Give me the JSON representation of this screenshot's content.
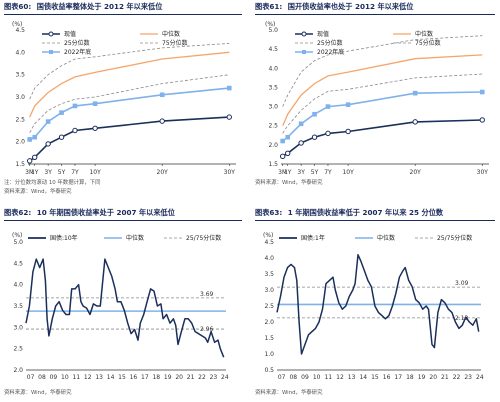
{
  "colors": {
    "navy": "#1b2f5b",
    "orange": "#f5a56b",
    "light_blue": "#7fb2ea",
    "dash_grey": "#8a8a8a",
    "title_navy": "#1a2a5a"
  },
  "panels": [
    {
      "id": "c60",
      "fig_num": "图表60:",
      "title": "国债收益率整体处于 2012 年以来低位",
      "footnotes": [
        "注：分位数均滚动 10 年数据计算，下同",
        "资料来源：Wind，华泰研究"
      ]
    },
    {
      "id": "c61",
      "fig_num": "图表61:",
      "title": "国开债收益率也处于 2012 年以来低位",
      "footnotes": [
        "资料来源：Wind，华泰研究"
      ]
    },
    {
      "id": "c62",
      "fig_num": "图表62:",
      "title": "10 年期国债收益率处于 2007 年以来低位",
      "footnotes": [
        "资料来源：Wind，华泰研究"
      ]
    },
    {
      "id": "c63",
      "fig_num": "图表63:",
      "title": "1 年期国债收益率低于 2007 年以来 25 分位数",
      "footnotes": [
        "资料来源：Wind，华泰研究"
      ]
    }
  ],
  "chart_data": [
    {
      "type": "line",
      "unit_label": "(%)",
      "x": [
        "3M",
        "1Y",
        "3Y",
        "5Y",
        "7Y",
        "10Y",
        "20Y",
        "30Y"
      ],
      "x_pos": [
        0.25,
        1,
        3,
        5,
        7,
        10,
        20,
        30
      ],
      "xticks": [
        "3M",
        "1Y",
        "3Y",
        "5Y",
        "7Y",
        "10Y",
        "20Y",
        "30Y"
      ],
      "ylim": [
        1.5,
        4.5
      ],
      "yticks": [
        "1.5",
        "2.0",
        "2.5",
        "3.0",
        "3.5",
        "4.0",
        "4.5"
      ],
      "legend": [
        "现值",
        "中位数",
        "25分位数",
        "75分位数",
        "2022年底"
      ],
      "series": [
        {
          "name": "现值",
          "style": "navy_open_circle",
          "values": [
            1.57,
            1.65,
            1.95,
            2.1,
            2.25,
            2.3,
            2.46,
            2.55
          ]
        },
        {
          "name": "中位数",
          "style": "orange_solid",
          "values": [
            2.55,
            2.8,
            3.1,
            3.3,
            3.45,
            3.55,
            3.85,
            4.0
          ]
        },
        {
          "name": "25分位数",
          "style": "grey_dash",
          "values": [
            2.2,
            2.4,
            2.7,
            2.85,
            2.95,
            3.0,
            3.3,
            3.5
          ]
        },
        {
          "name": "75分位数",
          "style": "grey_dash",
          "values": [
            2.95,
            3.2,
            3.5,
            3.7,
            3.85,
            3.9,
            4.1,
            4.2
          ]
        },
        {
          "name": "2022年底",
          "style": "blue_square",
          "values": [
            2.05,
            2.1,
            2.45,
            2.65,
            2.8,
            2.85,
            3.05,
            3.2
          ]
        }
      ]
    },
    {
      "type": "line",
      "unit_label": "(%)",
      "x": [
        "3M",
        "1Y",
        "3Y",
        "5Y",
        "7Y",
        "10Y",
        "20Y",
        "30Y"
      ],
      "x_pos": [
        0.25,
        1,
        3,
        5,
        7,
        10,
        20,
        30
      ],
      "xticks": [
        "3M",
        "1Y",
        "3Y",
        "5Y",
        "7Y",
        "10Y",
        "20Y",
        "30Y"
      ],
      "ylim": [
        1.5,
        5.0
      ],
      "yticks": [
        "1.5",
        "2.0",
        "2.5",
        "3.0",
        "3.5",
        "4.0",
        "4.5",
        "5.0"
      ],
      "legend": [
        "现值",
        "中位数",
        "25分位数",
        "75分位数",
        "2022年底"
      ],
      "series": [
        {
          "name": "现值",
          "style": "navy_open_circle",
          "values": [
            1.7,
            1.78,
            2.05,
            2.2,
            2.3,
            2.35,
            2.6,
            2.65
          ]
        },
        {
          "name": "中位数",
          "style": "orange_solid",
          "values": [
            2.5,
            2.8,
            3.3,
            3.6,
            3.8,
            3.9,
            4.25,
            4.35
          ]
        },
        {
          "name": "25分位数",
          "style": "grey_dash",
          "values": [
            2.3,
            2.5,
            2.9,
            3.2,
            3.4,
            3.45,
            3.75,
            3.85
          ]
        },
        {
          "name": "75分位数",
          "style": "grey_dash",
          "values": [
            3.0,
            3.3,
            3.9,
            4.2,
            4.35,
            4.45,
            4.75,
            4.85
          ]
        },
        {
          "name": "2022年底",
          "style": "blue_square",
          "values": [
            2.1,
            2.2,
            2.55,
            2.8,
            3.0,
            3.05,
            3.35,
            3.38
          ]
        }
      ]
    },
    {
      "type": "line",
      "unit_label": "(%)",
      "x": [
        "07",
        "08",
        "09",
        "10",
        "11",
        "12",
        "13",
        "14",
        "15",
        "16",
        "17",
        "18",
        "19",
        "20",
        "21",
        "22",
        "23",
        "24"
      ],
      "xticks": [
        "07",
        "08",
        "09",
        "10",
        "11",
        "12",
        "13",
        "14",
        "15",
        "16",
        "17",
        "18",
        "19",
        "20",
        "21",
        "22",
        "23",
        "24"
      ],
      "ylim": [
        2.0,
        5.0
      ],
      "yticks": [
        "2.0",
        "2.5",
        "3.0",
        "3.5",
        "4.0",
        "4.5",
        "5.0"
      ],
      "legend": [
        "国债:10年",
        "中位数",
        "25/75分位数"
      ],
      "series": [
        {
          "name": "国债:10年",
          "style": "navy_thick",
          "x": [
            2007.0,
            2007.3,
            2007.6,
            2007.9,
            2008.2,
            2008.5,
            2008.7,
            2008.85,
            2009.0,
            2009.3,
            2009.6,
            2009.9,
            2010.2,
            2010.5,
            2010.8,
            2011.0,
            2011.3,
            2011.6,
            2011.8,
            2012.0,
            2012.3,
            2012.6,
            2012.9,
            2013.2,
            2013.5,
            2013.7,
            2013.9,
            2014.2,
            2014.5,
            2014.8,
            2015.0,
            2015.3,
            2015.6,
            2015.9,
            2016.2,
            2016.5,
            2016.8,
            2017.0,
            2017.3,
            2017.6,
            2017.9,
            2018.2,
            2018.5,
            2018.8,
            2019.0,
            2019.3,
            2019.6,
            2019.9,
            2020.1,
            2020.3,
            2020.6,
            2020.9,
            2021.2,
            2021.5,
            2021.8,
            2022.1,
            2022.4,
            2022.7,
            2022.9,
            2023.2,
            2023.5,
            2023.8,
            2024.0,
            2024.3
          ],
          "values": [
            3.1,
            3.5,
            4.3,
            4.6,
            4.4,
            4.6,
            4.1,
            3.2,
            2.8,
            3.2,
            3.5,
            3.6,
            3.4,
            3.3,
            3.3,
            3.9,
            3.9,
            4.0,
            3.6,
            3.5,
            3.45,
            3.3,
            3.55,
            3.5,
            3.5,
            4.05,
            4.6,
            4.4,
            4.2,
            3.9,
            3.6,
            3.6,
            3.4,
            3.1,
            2.85,
            2.95,
            2.7,
            3.1,
            3.3,
            3.6,
            3.9,
            3.85,
            3.5,
            3.55,
            3.2,
            3.3,
            3.1,
            3.2,
            3.05,
            2.6,
            2.9,
            3.2,
            3.2,
            3.1,
            2.9,
            2.85,
            2.8,
            2.75,
            2.65,
            2.9,
            2.65,
            2.7,
            2.5,
            2.3
          ]
        }
      ],
      "median": 3.38,
      "p25": 2.96,
      "p75": 3.69,
      "annotations": [
        "3.69",
        "2.96"
      ]
    },
    {
      "type": "line",
      "unit_label": "(%)",
      "x": [
        "07",
        "08",
        "09",
        "10",
        "11",
        "12",
        "13",
        "14",
        "15",
        "16",
        "17",
        "18",
        "19",
        "20",
        "21",
        "22",
        "23",
        "24"
      ],
      "xticks": [
        "07",
        "08",
        "09",
        "10",
        "11",
        "12",
        "13",
        "14",
        "15",
        "16",
        "17",
        "18",
        "19",
        "20",
        "21",
        "22",
        "23",
        "24"
      ],
      "ylim": [
        0.5,
        4.5
      ],
      "yticks": [
        "0.5",
        "1.0",
        "1.5",
        "2.0",
        "2.5",
        "3.0",
        "3.5",
        "4.0",
        "4.5"
      ],
      "legend": [
        "国债:1年",
        "中位数",
        "25/75分位数"
      ],
      "series": [
        {
          "name": "国债:1年",
          "style": "navy_thick",
          "x": [
            2007.0,
            2007.3,
            2007.6,
            2007.9,
            2008.2,
            2008.5,
            2008.7,
            2008.9,
            2009.1,
            2009.4,
            2009.7,
            2010.0,
            2010.3,
            2010.6,
            2010.9,
            2011.2,
            2011.5,
            2011.8,
            2012.0,
            2012.3,
            2012.6,
            2012.9,
            2013.2,
            2013.5,
            2013.7,
            2013.95,
            2014.2,
            2014.5,
            2014.8,
            2015.1,
            2015.4,
            2015.7,
            2016.0,
            2016.3,
            2016.6,
            2016.9,
            2017.2,
            2017.5,
            2017.8,
            2018.0,
            2018.3,
            2018.6,
            2018.9,
            2019.2,
            2019.5,
            2019.8,
            2020.0,
            2020.3,
            2020.5,
            2020.8,
            2021.1,
            2021.4,
            2021.7,
            2022.0,
            2022.3,
            2022.6,
            2022.9,
            2023.2,
            2023.5,
            2023.8,
            2024.1,
            2024.3
          ],
          "values": [
            2.3,
            2.8,
            3.4,
            3.7,
            3.8,
            3.7,
            3.3,
            2.0,
            1.0,
            1.3,
            1.6,
            1.7,
            1.8,
            2.0,
            2.4,
            3.2,
            3.3,
            3.4,
            3.0,
            2.6,
            2.4,
            2.5,
            2.8,
            3.0,
            3.2,
            4.1,
            3.9,
            3.6,
            3.3,
            3.1,
            2.5,
            2.3,
            2.2,
            2.1,
            2.2,
            2.5,
            2.9,
            3.4,
            3.6,
            3.7,
            3.3,
            3.1,
            2.7,
            2.6,
            2.4,
            2.5,
            2.4,
            1.3,
            1.2,
            2.3,
            2.7,
            2.6,
            2.4,
            2.3,
            2.0,
            1.8,
            1.9,
            2.15,
            2.0,
            1.9,
            2.1,
            1.7
          ]
        }
      ],
      "median": 2.55,
      "p25": 2.13,
      "p75": 3.09,
      "annotations": [
        "3.09",
        "2.13"
      ]
    }
  ]
}
